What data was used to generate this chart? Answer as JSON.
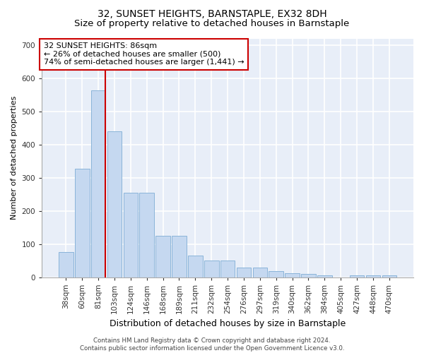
{
  "title": "32, SUNSET HEIGHTS, BARNSTAPLE, EX32 8DH",
  "subtitle": "Size of property relative to detached houses in Barnstaple",
  "xlabel": "Distribution of detached houses by size in Barnstaple",
  "ylabel": "Number of detached properties",
  "categories": [
    "38sqm",
    "60sqm",
    "81sqm",
    "103sqm",
    "124sqm",
    "146sqm",
    "168sqm",
    "189sqm",
    "211sqm",
    "232sqm",
    "254sqm",
    "276sqm",
    "297sqm",
    "319sqm",
    "340sqm",
    "362sqm",
    "384sqm",
    "405sqm",
    "427sqm",
    "448sqm",
    "470sqm"
  ],
  "values": [
    75,
    328,
    565,
    440,
    255,
    255,
    125,
    125,
    65,
    50,
    50,
    28,
    28,
    18,
    12,
    10,
    5,
    0,
    5,
    5,
    5
  ],
  "bar_color": "#c5d8f0",
  "bar_edge_color": "#8ab4d9",
  "vline_x": 2.45,
  "vline_color": "#cc0000",
  "annotation_text": "32 SUNSET HEIGHTS: 86sqm\n← 26% of detached houses are smaller (500)\n74% of semi-detached houses are larger (1,441) →",
  "annotation_box_color": "#ffffff",
  "annotation_box_edge_color": "#cc0000",
  "ylim": [
    0,
    720
  ],
  "yticks": [
    0,
    100,
    200,
    300,
    400,
    500,
    600,
    700
  ],
  "background_color": "#e8eef8",
  "grid_color": "#ffffff",
  "footer": "Contains HM Land Registry data © Crown copyright and database right 2024.\nContains public sector information licensed under the Open Government Licence v3.0.",
  "title_fontsize": 10,
  "subtitle_fontsize": 9.5,
  "xlabel_fontsize": 9,
  "ylabel_fontsize": 8,
  "tick_fontsize": 7.5,
  "annotation_fontsize": 8
}
